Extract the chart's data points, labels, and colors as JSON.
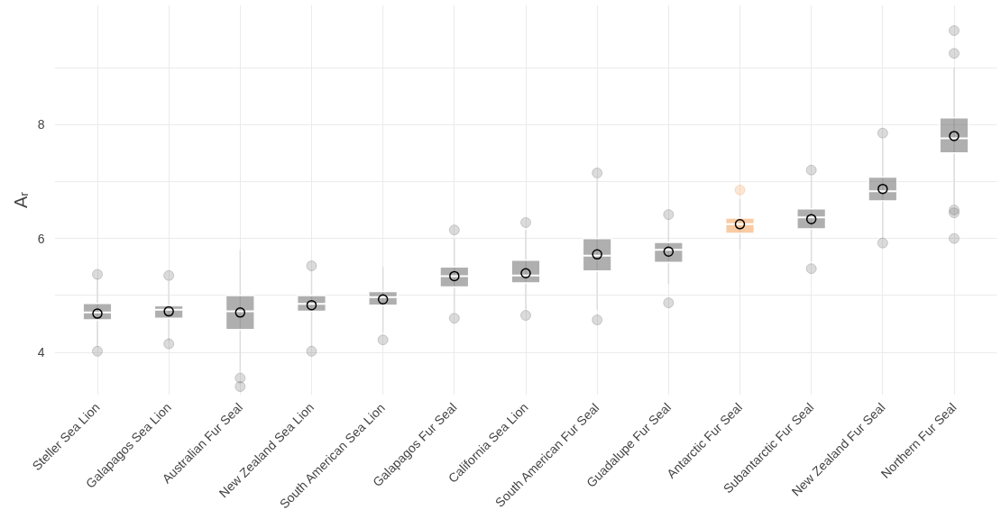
{
  "chart_data": {
    "type": "box",
    "ylabel": "Aᵣ",
    "categories": [
      "Steller Sea Lion",
      "Galapagos Sea Lion",
      "Australian Fur Seal",
      "New Zealand Sea Lion",
      "South American Sea Lion",
      "Galapagos Fur Seal",
      "California Sea Lion",
      "South American Fur Seal",
      "Guadalupe Fur Seal",
      "Antarctic Fur Seal",
      "Subantarctic Fur Seal",
      "New Zealand Fur Seal",
      "Northern Fur Seal"
    ],
    "colors": [
      "#6e6e6e",
      "#6e6e6e",
      "#6e6e6e",
      "#6e6e6e",
      "#6e6e6e",
      "#6e6e6e",
      "#6e6e6e",
      "#6e6e6e",
      "#6e6e6e",
      "#f4a05a",
      "#6e6e6e",
      "#6e6e6e",
      "#6e6e6e"
    ],
    "boxes": [
      {
        "low": 4.1,
        "q1": 4.57,
        "median": 4.7,
        "q3": 4.86,
        "high": 5.3,
        "mean": 4.68,
        "outliers": [
          5.37,
          4.02
        ]
      },
      {
        "low": 4.2,
        "q1": 4.6,
        "median": 4.75,
        "q3": 4.82,
        "high": 5.25,
        "mean": 4.72,
        "outliers": [
          5.35,
          4.15
        ]
      },
      {
        "low": 3.65,
        "q1": 4.4,
        "median": 4.72,
        "q3": 5.0,
        "high": 5.8,
        "mean": 4.7,
        "outliers": [
          3.55,
          3.4
        ]
      },
      {
        "low": 4.1,
        "q1": 4.72,
        "median": 4.85,
        "q3": 5.0,
        "high": 5.45,
        "mean": 4.83,
        "outliers": [
          5.52,
          4.02
        ]
      },
      {
        "low": 4.35,
        "q1": 4.83,
        "median": 4.97,
        "q3": 5.07,
        "high": 5.5,
        "mean": 4.93,
        "outliers": [
          4.22
        ]
      },
      {
        "low": 4.7,
        "q1": 5.15,
        "median": 5.34,
        "q3": 5.5,
        "high": 6.0,
        "mean": 5.34,
        "outliers": [
          6.15,
          4.6
        ]
      },
      {
        "low": 4.75,
        "q1": 5.22,
        "median": 5.35,
        "q3": 5.62,
        "high": 6.15,
        "mean": 5.39,
        "outliers": [
          6.28,
          4.65
        ]
      },
      {
        "low": 4.75,
        "q1": 5.43,
        "median": 5.7,
        "q3": 6.0,
        "high": 7.05,
        "mean": 5.72,
        "outliers": [
          7.15,
          4.57
        ]
      },
      {
        "low": 5.2,
        "q1": 5.58,
        "median": 5.8,
        "q3": 5.93,
        "high": 6.35,
        "mean": 5.77,
        "outliers": [
          6.42,
          4.87
        ]
      },
      {
        "low": 5.8,
        "q1": 6.09,
        "median": 6.25,
        "q3": 6.36,
        "high": 6.7,
        "mean": 6.25,
        "outliers": [
          6.85
        ]
      },
      {
        "low": 5.6,
        "q1": 6.17,
        "median": 6.37,
        "q3": 6.52,
        "high": 7.1,
        "mean": 6.34,
        "outliers": [
          7.2,
          5.47
        ]
      },
      {
        "low": 6.0,
        "q1": 6.66,
        "median": 6.83,
        "q3": 7.08,
        "high": 7.75,
        "mean": 6.87,
        "outliers": [
          7.85,
          5.92
        ]
      },
      {
        "low": 6.6,
        "q1": 7.5,
        "median": 7.76,
        "q3": 8.12,
        "high": 9.0,
        "mean": 7.8,
        "outliers": [
          9.25,
          9.65,
          6.5,
          6.45,
          6.0
        ]
      }
    ],
    "ylim": [
      3.25,
      10.1
    ],
    "yticks": [
      4,
      {
        "value": 5,
        "label": null
      },
      6,
      {
        "value": 7,
        "label": null
      },
      8,
      {
        "value": 9,
        "label": null
      }
    ],
    "grid": true
  }
}
